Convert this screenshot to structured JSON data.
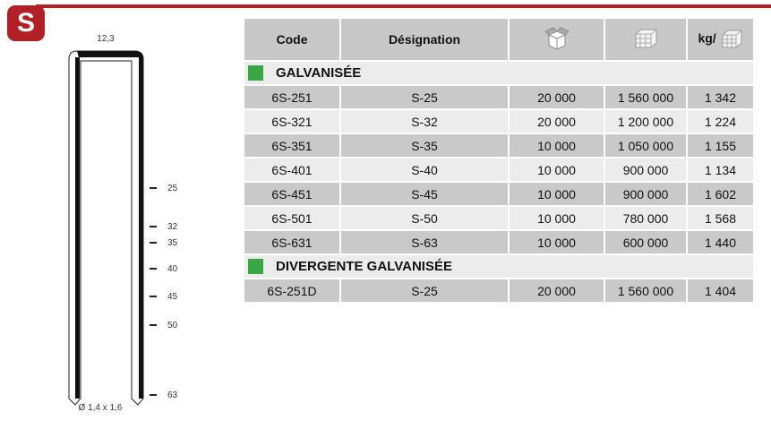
{
  "logo": "S",
  "staple": {
    "width": "12,3",
    "wire": "Ø 1,4 x 1,6",
    "lengths": [
      "25",
      "32",
      "35",
      "40",
      "45",
      "50",
      "63"
    ]
  },
  "table": {
    "headers": {
      "code": "Code",
      "designation": "Désignation",
      "box_icon": "box-icon",
      "pallet_icon": "pallet-icon",
      "kg": "kg/"
    },
    "sections": [
      {
        "title": "GALVANISÉE",
        "color": "#3aa745",
        "rows": [
          [
            "6S-251",
            "S-25",
            "20 000",
            "1 560 000",
            "1 342"
          ],
          [
            "6S-321",
            "S-32",
            "20 000",
            "1 200 000",
            "1 224"
          ],
          [
            "6S-351",
            "S-35",
            "10 000",
            "1 050 000",
            "1 155"
          ],
          [
            "6S-401",
            "S-40",
            "10 000",
            "900 000",
            "1 134"
          ],
          [
            "6S-451",
            "S-45",
            "10 000",
            "900 000",
            "1 602"
          ],
          [
            "6S-501",
            "S-50",
            "10 000",
            "780 000",
            "1 568"
          ],
          [
            "6S-631",
            "S-63",
            "10 000",
            "600 000",
            "1 440"
          ]
        ]
      },
      {
        "title": "DIVERGENTE GALVANISÉE",
        "color": "#3aa745",
        "rows": [
          [
            "6S-251D",
            "S-25",
            "20 000",
            "1 560 000",
            "1 404"
          ]
        ]
      }
    ]
  }
}
